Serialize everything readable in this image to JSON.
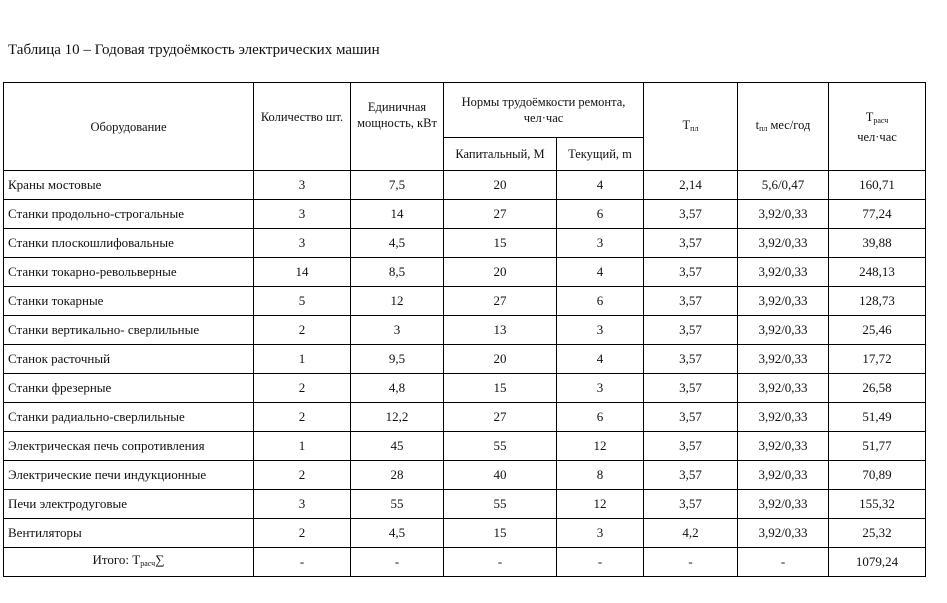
{
  "caption": "Таблица 10 – Годовая трудоёмкость электрических машин",
  "table": {
    "header": {
      "equipment": "Оборудование",
      "quantity": "Количество шт.",
      "power": "Единичная мощность, кВт",
      "norms": "Нормы трудоёмкости ремонта, чел·час",
      "capital": "Капитальный, М",
      "current": "Текущий, m",
      "tpl": {
        "main": "T",
        "sub": "пл"
      },
      "tpl_month": {
        "main": "t",
        "sub": "пл",
        "rest": " мес/год"
      },
      "trasch": {
        "main": "T",
        "sub": "расч",
        "rest": "чел·час"
      }
    },
    "rows": [
      [
        "Краны мостовые",
        "3",
        "7,5",
        "20",
        "4",
        "2,14",
        "5,6/0,47",
        "160,71"
      ],
      [
        "Станки продольно-строгальные",
        "3",
        "14",
        "27",
        "6",
        "3,57",
        "3,92/0,33",
        "77,24"
      ],
      [
        "Станки плоскошлифовальные",
        "3",
        "4,5",
        "15",
        "3",
        "3,57",
        "3,92/0,33",
        "39,88"
      ],
      [
        "Станки токарно-револьверные",
        "14",
        "8,5",
        "20",
        "4",
        "3,57",
        "3,92/0,33",
        "248,13"
      ],
      [
        "Станки токарные",
        "5",
        "12",
        "27",
        "6",
        "3,57",
        "3,92/0,33",
        "128,73"
      ],
      [
        "Станки вертикально- сверлильные",
        "2",
        "3",
        "13",
        "3",
        "3,57",
        "3,92/0,33",
        "25,46"
      ],
      [
        "Станок расточный",
        "1",
        "9,5",
        "20",
        "4",
        "3,57",
        "3,92/0,33",
        "17,72"
      ],
      [
        "Станки фрезерные",
        "2",
        "4,8",
        "15",
        "3",
        "3,57",
        "3,92/0,33",
        "26,58"
      ],
      [
        "Станки радиально-сверлильные",
        "2",
        "12,2",
        "27",
        "6",
        "3,57",
        "3,92/0,33",
        "51,49"
      ],
      [
        "Электрическая печь сопротивления",
        "1",
        "45",
        "55",
        "12",
        "3,57",
        "3,92/0,33",
        "51,77"
      ],
      [
        "Электрические печи индукционные",
        "2",
        "28",
        "40",
        "8",
        "3,57",
        "3,92/0,33",
        "70,89"
      ],
      [
        "Печи электродуговые",
        "3",
        "55",
        "55",
        "12",
        "3,57",
        "3,92/0,33",
        "155,32"
      ],
      [
        "Вентиляторы",
        "2",
        "4,5",
        "15",
        "3",
        "4,2",
        "3,92/0,33",
        "25,32"
      ]
    ],
    "total": {
      "label": {
        "main": "Итого: T",
        "sub": "расч",
        "rest": "∑"
      },
      "cells": [
        "-",
        "-",
        "-",
        "-",
        "-",
        "-",
        "1079,24"
      ]
    }
  }
}
